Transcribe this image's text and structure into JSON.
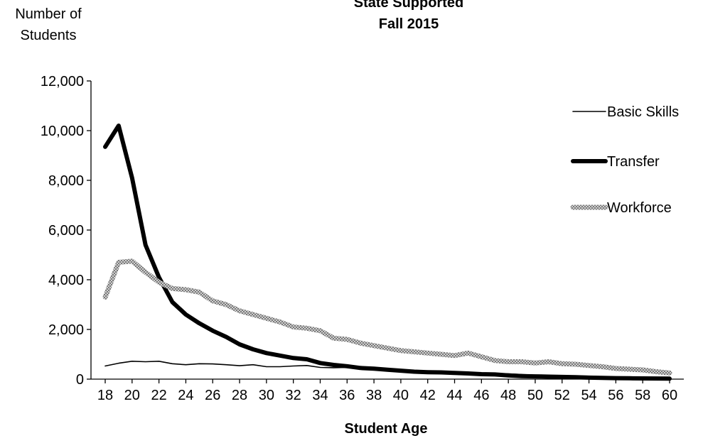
{
  "chart_data": {
    "type": "line",
    "title": "State Supported",
    "subtitle": "Fall 2015",
    "xlabel": "Student Age",
    "ylabel_lines": [
      "Number of",
      "Students"
    ],
    "xlim": [
      18,
      60
    ],
    "ylim": [
      0,
      12000
    ],
    "x_ticks": [
      18,
      20,
      22,
      24,
      26,
      28,
      30,
      32,
      34,
      36,
      38,
      40,
      42,
      44,
      46,
      48,
      50,
      52,
      54,
      56,
      58,
      60
    ],
    "y_ticks": [
      0,
      2000,
      4000,
      6000,
      8000,
      10000,
      12000
    ],
    "y_tick_labels": [
      "0",
      "2,000",
      "4,000",
      "6,000",
      "8,000",
      "10,000",
      "12,000"
    ],
    "grid": false,
    "legend_position": "right",
    "x": [
      18,
      19,
      20,
      21,
      22,
      23,
      24,
      25,
      26,
      27,
      28,
      29,
      30,
      31,
      32,
      33,
      34,
      35,
      36,
      37,
      38,
      39,
      40,
      41,
      42,
      43,
      44,
      45,
      46,
      47,
      48,
      49,
      50,
      51,
      52,
      53,
      54,
      55,
      56,
      57,
      58,
      59,
      60
    ],
    "series": [
      {
        "name": "Basic Skills",
        "style": "thin",
        "color": "#000000",
        "values": [
          530,
          640,
          720,
          700,
          720,
          620,
          580,
          620,
          610,
          580,
          540,
          580,
          500,
          500,
          530,
          550,
          470,
          460,
          470,
          450,
          420,
          400,
          360,
          330,
          310,
          300,
          290,
          270,
          250,
          230,
          210,
          190,
          160,
          150,
          140,
          130,
          120,
          100,
          90,
          80,
          70,
          60,
          50
        ]
      },
      {
        "name": "Transfer",
        "style": "thick",
        "color": "#000000",
        "values": [
          9350,
          10200,
          8100,
          5400,
          4100,
          3100,
          2600,
          2250,
          1950,
          1700,
          1400,
          1200,
          1050,
          950,
          850,
          800,
          650,
          570,
          520,
          450,
          420,
          380,
          340,
          300,
          280,
          270,
          250,
          230,
          200,
          190,
          150,
          120,
          110,
          100,
          90,
          80,
          60,
          50,
          40,
          35,
          30,
          25,
          20
        ]
      },
      {
        "name": "Workforce",
        "style": "pattern",
        "color": "#a6a6a6",
        "values": [
          3300,
          4700,
          4750,
          4300,
          3900,
          3650,
          3600,
          3500,
          3150,
          3000,
          2750,
          2600,
          2450,
          2300,
          2100,
          2050,
          1950,
          1650,
          1600,
          1450,
          1350,
          1250,
          1150,
          1100,
          1050,
          1000,
          950,
          1050,
          900,
          750,
          700,
          700,
          650,
          700,
          620,
          600,
          550,
          500,
          430,
          400,
          370,
          300,
          250
        ]
      }
    ]
  }
}
